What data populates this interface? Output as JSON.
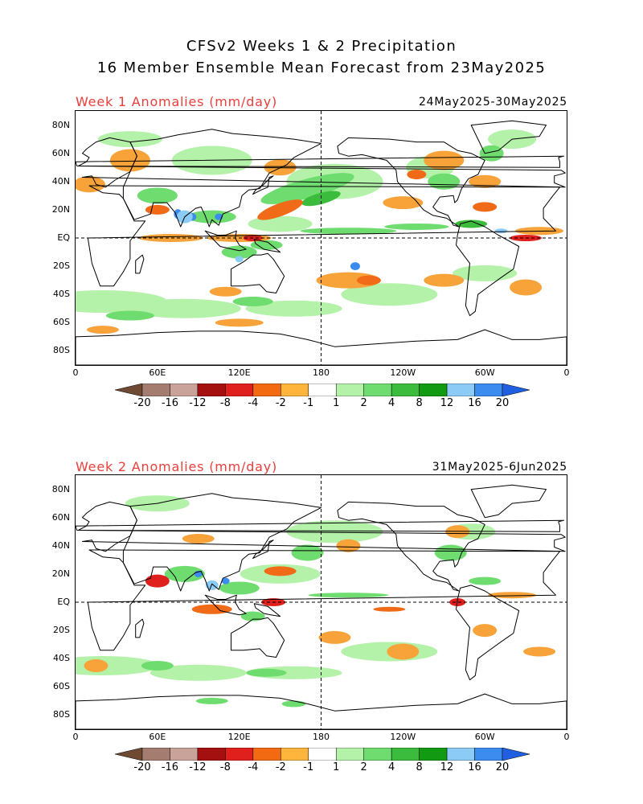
{
  "title_line1": "CFSv2 Weeks 1 & 2 Precipitation",
  "title_line2": "16 Member Ensemble Mean Forecast from 23May2025",
  "panels": [
    {
      "label": "Week 1 Anomalies (mm/day)",
      "dates": "24May2025-30May2025"
    },
    {
      "label": "Week 2 Anomalies (mm/day)",
      "dates": "31May2025-6Jun2025"
    }
  ],
  "lat_labels": [
    "80N",
    "60N",
    "40N",
    "20N",
    "EQ",
    "20S",
    "40S",
    "60S",
    "80S"
  ],
  "lon_labels": [
    "0",
    "60E",
    "120E",
    "180",
    "120W",
    "60W",
    "0"
  ],
  "colorbar": {
    "labels": [
      "-20",
      "-16",
      "-12",
      "-8",
      "-4",
      "-2",
      "-1",
      "1",
      "2",
      "4",
      "8",
      "12",
      "16",
      "20"
    ],
    "colors": [
      "#6e4a32",
      "#a47d70",
      "#c9a39a",
      "#a40f0f",
      "#e0201c",
      "#f26a12",
      "#ffb43c",
      "#ffffff",
      "#b4f2aa",
      "#6edc6e",
      "#3cbc3c",
      "#129a12",
      "#8ccbf5",
      "#3c8cf0",
      "#1f5fe0"
    ]
  },
  "map_colors": {
    "orange": "#f7a33a",
    "dark_orange": "#f06a18",
    "red": "#e0201c",
    "dark_red": "#a40f0f",
    "light_green": "#b4f2aa",
    "green": "#6edc6e",
    "dark_green": "#3cbc3c",
    "light_blue": "#8ccbf5",
    "blue": "#3c8cf0"
  }
}
